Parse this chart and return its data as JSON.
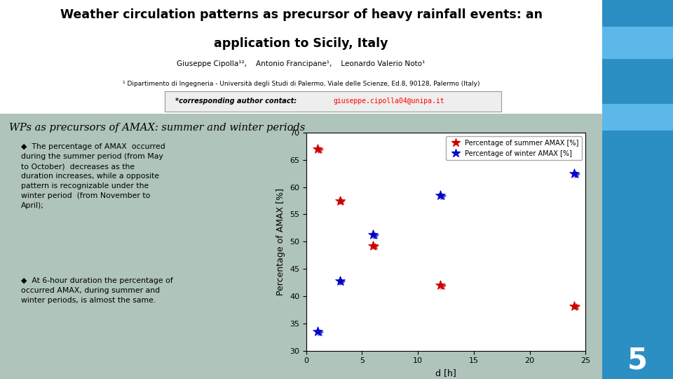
{
  "title_line1": "Weather circulation patterns as precursor of heavy rainfall events: an",
  "title_line2": "application to Sicily, Italy",
  "authors": "Giuseppe Cipolla¹²,    Antonio Francipane¹,    Leonardo Valerio Noto¹",
  "affiliation": "¹ Dipartimento di Ingegneria - Università degli Studi di Palermo, Viale delle Scienze, Ed.8, 90128, Palermo (Italy)",
  "contact_label": "*corresponding author contact:",
  "contact_email": "giuseppe.cipolla04@unipa.it",
  "section_title": "WPs as precursors of AMAX: summer and winter periods",
  "bullet1_line1": "The percentage of AMAX  occurred during the",
  "bullet1_italic": "summer period",
  "bullet1_line1b": " (from May",
  "bullet1_rest": "to October)  decreases as the duration increases,\nwhile a opposite pattern is recognizable under the",
  "bullet1_italic2": "winter period",
  "bullet1_rest2": " (from November to April);",
  "bullet2_line1": "At 6-hour duration the percentage of occurred AMAX,\nduring ",
  "bullet2_italic": "summer",
  "bullet2_line2": " and ",
  "bullet2_italic2": "winter",
  "bullet2_rest": " periods, is almost the same.",
  "summer_x": [
    1,
    3,
    6,
    12,
    24
  ],
  "summer_y": [
    67.0,
    57.5,
    49.3,
    42.0,
    38.2
  ],
  "winter_x": [
    1,
    3,
    6,
    12,
    24
  ],
  "winter_y": [
    33.5,
    42.8,
    51.3,
    58.5,
    62.5
  ],
  "summer_color": "#CC0000",
  "winter_color": "#0000CC",
  "xlabel": "d [h]",
  "ylabel": "Percentage of AMAX [%]",
  "xlim": [
    0,
    25
  ],
  "ylim": [
    30,
    70
  ],
  "yticks": [
    30,
    35,
    40,
    45,
    50,
    55,
    60,
    65,
    70
  ],
  "xticks": [
    0,
    5,
    10,
    15,
    20,
    25
  ],
  "legend_summer": "Percentage of summer AMAX [%]",
  "legend_winter": "Percentage of winter AMAX [%]",
  "bg_color": "#ffffff",
  "slide_bg": "#afc4bb",
  "right_bar_color": "#2B8FC4",
  "page_number": "5"
}
